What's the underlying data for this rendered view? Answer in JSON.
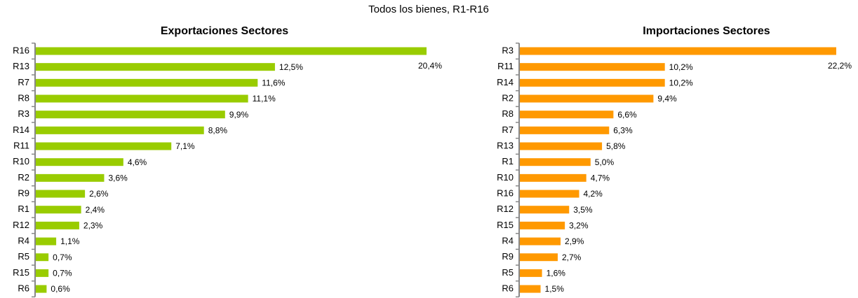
{
  "subtitle": "Todos los bienes, R1-R16",
  "chart_data": [
    {
      "type": "bar",
      "title": "Exportaciones Sectores",
      "color": "#99cc00",
      "categories": [
        "R16",
        "R13",
        "R7",
        "R8",
        "R3",
        "R14",
        "R11",
        "R10",
        "R2",
        "R9",
        "R1",
        "R12",
        "R4",
        "R5",
        "R15",
        "R6"
      ],
      "values": [
        20.4,
        12.5,
        11.6,
        11.1,
        9.9,
        8.8,
        7.1,
        4.6,
        3.6,
        2.6,
        2.4,
        2.3,
        1.1,
        0.7,
        0.7,
        0.6
      ],
      "value_labels": [
        "20,4%",
        "12,5%",
        "11,6%",
        "11,1%",
        "9,9%",
        "8,8%",
        "7,1%",
        "4,6%",
        "3,6%",
        "2,6%",
        "2,4%",
        "2,3%",
        "1,1%",
        "0,7%",
        "0,7%",
        "0,6%"
      ]
    },
    {
      "type": "bar",
      "title": "Importaciones Sectores",
      "color": "#ff9900",
      "categories": [
        "R3",
        "R11",
        "R14",
        "R2",
        "R8",
        "R7",
        "R13",
        "R1",
        "R10",
        "R16",
        "R12",
        "R15",
        "R4",
        "R9",
        "R5",
        "R6"
      ],
      "values": [
        22.2,
        10.2,
        10.2,
        9.4,
        6.6,
        6.3,
        5.8,
        5.0,
        4.7,
        4.2,
        3.5,
        3.2,
        2.9,
        2.7,
        1.6,
        1.5
      ],
      "value_labels": [
        "22,2%",
        "10,2%",
        "10,2%",
        "9,4%",
        "6,6%",
        "6,3%",
        "5,8%",
        "5,0%",
        "4,7%",
        "4,2%",
        "3,5%",
        "3,2%",
        "2,9%",
        "2,7%",
        "1,6%",
        "1,5%"
      ]
    }
  ]
}
